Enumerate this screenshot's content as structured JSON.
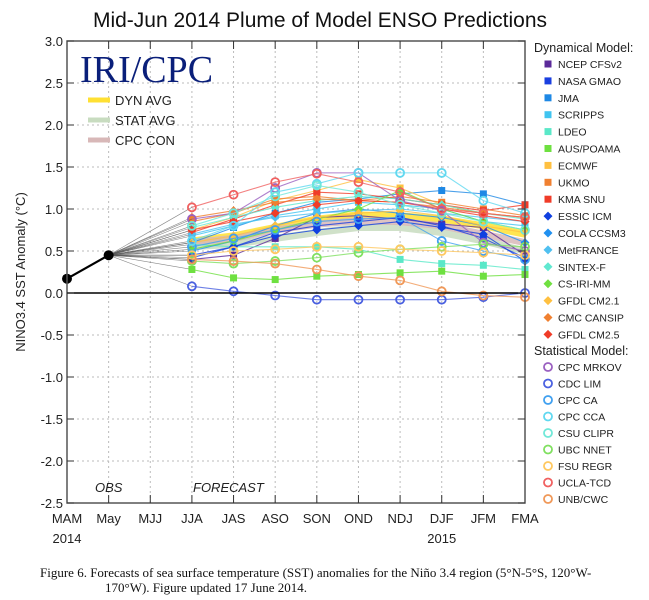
{
  "chart_data": {
    "type": "line",
    "title": "Mid-Jun 2014 Plume of Model ENSO Predictions",
    "logo": "IRI/CPC",
    "xlabel": "",
    "ylabel": "NINO3.4 SST Anomaly (°C)",
    "ylim": [
      -2.5,
      3.0
    ],
    "yticks": [
      "3.0",
      "2.5",
      "2.0",
      "1.5",
      "1.0",
      "0.5",
      "0.0",
      "-0.5",
      "-1.0",
      "-1.5",
      "-2.0",
      "-2.5"
    ],
    "categories": [
      "MAM",
      "May",
      "MJJ",
      "JJA",
      "JAS",
      "ASO",
      "SON",
      "OND",
      "NDJ",
      "DJF",
      "JFM",
      "FMA"
    ],
    "year_labels": [
      {
        "label": "2014",
        "at": "MAM"
      },
      {
        "label": "2015",
        "at": "DJF"
      }
    ],
    "annotations": {
      "obs": "OBS",
      "forecast": "FORECAST"
    },
    "grid": true,
    "observed": {
      "name": "OBS",
      "color": "#000000",
      "values": [
        0.17,
        0.45
      ]
    },
    "averages": [
      {
        "name": "DYN AVG",
        "color": "#ffe033",
        "values": [
          0.62,
          0.68,
          0.78,
          0.88,
          0.93,
          0.92,
          0.88,
          0.8,
          0.7
        ]
      },
      {
        "name": "STAT AVG",
        "color": "#c8dcc0",
        "values": [
          0.55,
          0.58,
          0.65,
          0.72,
          0.78,
          0.78,
          0.72,
          0.62,
          0.5
        ]
      },
      {
        "name": "CPC CON",
        "color": "#d8b8b8",
        "values": [
          0.6,
          0.65,
          0.75,
          0.82,
          0.86,
          0.85,
          0.8,
          0.7,
          0.6
        ]
      }
    ],
    "legend_dynamical_title": "Dynamical Model:",
    "legend_statistical_title": "Statistical Model:",
    "dynamical_models": [
      {
        "name": "NCEP CFSv2",
        "color": "#5b2a9a",
        "marker": "square",
        "values": [
          0.4,
          0.45,
          0.65,
          0.9,
          0.92,
          0.88,
          0.82,
          0.78,
          0.45
        ]
      },
      {
        "name": "NASA GMAO",
        "color": "#1a3fe0",
        "marker": "square",
        "values": [
          0.45,
          0.55,
          0.72,
          0.8,
          0.85,
          0.9,
          0.8,
          0.65,
          0.42
        ]
      },
      {
        "name": "JMA",
        "color": "#1e88e5",
        "marker": "square",
        "values": [
          0.6,
          0.78,
          0.95,
          1.08,
          1.12,
          1.18,
          1.22,
          1.18,
          1.05
        ]
      },
      {
        "name": "SCRIPPS",
        "color": "#40c4f0",
        "marker": "square",
        "values": [
          0.68,
          0.8,
          0.92,
          1.0,
          1.08,
          1.05,
          1.0,
          0.85,
          0.8
        ]
      },
      {
        "name": "LDEO",
        "color": "#5ae8c8",
        "marker": "square",
        "values": [
          0.58,
          0.55,
          0.55,
          0.55,
          0.52,
          0.4,
          0.35,
          0.33,
          0.28
        ]
      },
      {
        "name": "AUS/POAMA",
        "color": "#6ee040",
        "marker": "square",
        "values": [
          0.28,
          0.18,
          0.16,
          0.2,
          0.22,
          0.24,
          0.26,
          0.2,
          0.22
        ]
      },
      {
        "name": "ECMWF",
        "color": "#ffc040",
        "marker": "square",
        "values": [
          0.75,
          0.9,
          1.1,
          1.22,
          1.35,
          1.25,
          1.05,
          0.95,
          0.9
        ]
      },
      {
        "name": "UKMO",
        "color": "#f08030",
        "marker": "square",
        "values": [
          0.85,
          0.95,
          1.12,
          1.15,
          1.1,
          1.15,
          1.08,
          1.0,
          0.92
        ]
      },
      {
        "name": "KMA SNU",
        "color": "#f03c28",
        "marker": "square",
        "values": [
          0.72,
          0.88,
          1.05,
          1.2,
          1.18,
          1.12,
          1.05,
          0.98,
          1.05
        ]
      },
      {
        "name": "ESSIC ICM",
        "color": "#1040e0",
        "marker": "diamond",
        "values": [
          0.42,
          0.55,
          0.68,
          0.75,
          0.8,
          0.85,
          0.78,
          0.7,
          0.38
        ]
      },
      {
        "name": "COLA CCSM3",
        "color": "#2090f0",
        "marker": "diamond",
        "values": [
          0.5,
          0.62,
          0.8,
          0.95,
          1.0,
          0.95,
          0.9,
          0.8,
          0.6
        ]
      },
      {
        "name": "MetFRANCE",
        "color": "#50c0f0",
        "marker": "diamond",
        "values": [
          0.7,
          0.82,
          0.9,
          0.95,
          0.98,
          1.0,
          0.95,
          0.9,
          0.85
        ]
      },
      {
        "name": "SINTEX-F",
        "color": "#60e8d0",
        "marker": "diamond",
        "values": [
          0.78,
          0.9,
          1.02,
          1.1,
          1.15,
          1.12,
          1.05,
          0.95,
          0.88
        ]
      },
      {
        "name": "CS-IRI-MM",
        "color": "#70e040",
        "marker": "diamond",
        "values": [
          0.52,
          0.62,
          0.75,
          0.88,
          1.0,
          1.22,
          1.0,
          0.85,
          0.75
        ]
      },
      {
        "name": "GFDL CM2.1",
        "color": "#ffc040",
        "marker": "diamond",
        "values": [
          0.6,
          0.68,
          0.8,
          0.9,
          0.95,
          0.98,
          0.92,
          0.8,
          0.72
        ]
      },
      {
        "name": "CMC CANSIP",
        "color": "#f08030",
        "marker": "diamond",
        "values": [
          0.9,
          0.98,
          1.08,
          1.12,
          1.1,
          1.08,
          1.02,
          0.95,
          0.9
        ]
      },
      {
        "name": "GFDL CM2.5",
        "color": "#f03c28",
        "marker": "diamond",
        "values": [
          0.75,
          0.85,
          0.95,
          1.05,
          1.1,
          1.08,
          1.0,
          0.92,
          0.85
        ]
      }
    ],
    "statistical_models": [
      {
        "name": "CPC MRKOV",
        "color": "#9a60c0",
        "marker": "circle",
        "values": [
          0.88,
          0.95,
          1.25,
          1.43,
          1.43,
          1.1,
          0.98,
          0.6,
          0.5
        ]
      },
      {
        "name": "CDC LIM",
        "color": "#4a60e0",
        "marker": "circle",
        "values": [
          0.08,
          0.02,
          -0.03,
          -0.08,
          -0.08,
          -0.08,
          -0.08,
          -0.05,
          0.0
        ]
      },
      {
        "name": "CPC CA",
        "color": "#40a0f0",
        "marker": "circle",
        "values": [
          0.55,
          0.65,
          0.75,
          0.85,
          0.88,
          0.9,
          0.62,
          0.5,
          0.4
        ]
      },
      {
        "name": "CPC CCA",
        "color": "#60d8f0",
        "marker": "circle",
        "values": [
          0.62,
          0.8,
          1.2,
          1.3,
          1.43,
          1.43,
          1.43,
          1.1,
          0.95
        ]
      },
      {
        "name": "CSU CLIPR",
        "color": "#70e8d8",
        "marker": "circle",
        "values": [
          0.8,
          0.95,
          1.15,
          1.28,
          1.2,
          1.05,
          0.95,
          0.85,
          0.75
        ]
      },
      {
        "name": "UBC NNET",
        "color": "#80e060",
        "marker": "circle",
        "values": [
          0.38,
          0.35,
          0.38,
          0.42,
          0.48,
          0.52,
          0.55,
          0.58,
          0.55
        ]
      },
      {
        "name": "FSU REGR",
        "color": "#ffc860",
        "marker": "circle",
        "values": [
          0.45,
          0.5,
          0.52,
          0.55,
          0.55,
          0.52,
          0.5,
          0.48,
          0.45
        ]
      },
      {
        "name": "UCLA-TCD",
        "color": "#f06060",
        "marker": "circle",
        "values": [
          1.02,
          1.17,
          1.32,
          1.42,
          1.32,
          1.2,
          1.0,
          0.95,
          0.9
        ]
      },
      {
        "name": "UNB/CWC",
        "color": "#f09858",
        "marker": "circle",
        "values": [
          0.4,
          0.38,
          0.35,
          0.28,
          0.2,
          0.15,
          0.02,
          -0.03,
          -0.05
        ]
      }
    ]
  },
  "caption": {
    "line1": "Figure 6. Forecasts of sea surface temperature (SST) anomalies for the Niño 3.4 region (5°N-5°S, 120°W-",
    "line2": "170°W).  Figure updated 17 June 2014."
  }
}
